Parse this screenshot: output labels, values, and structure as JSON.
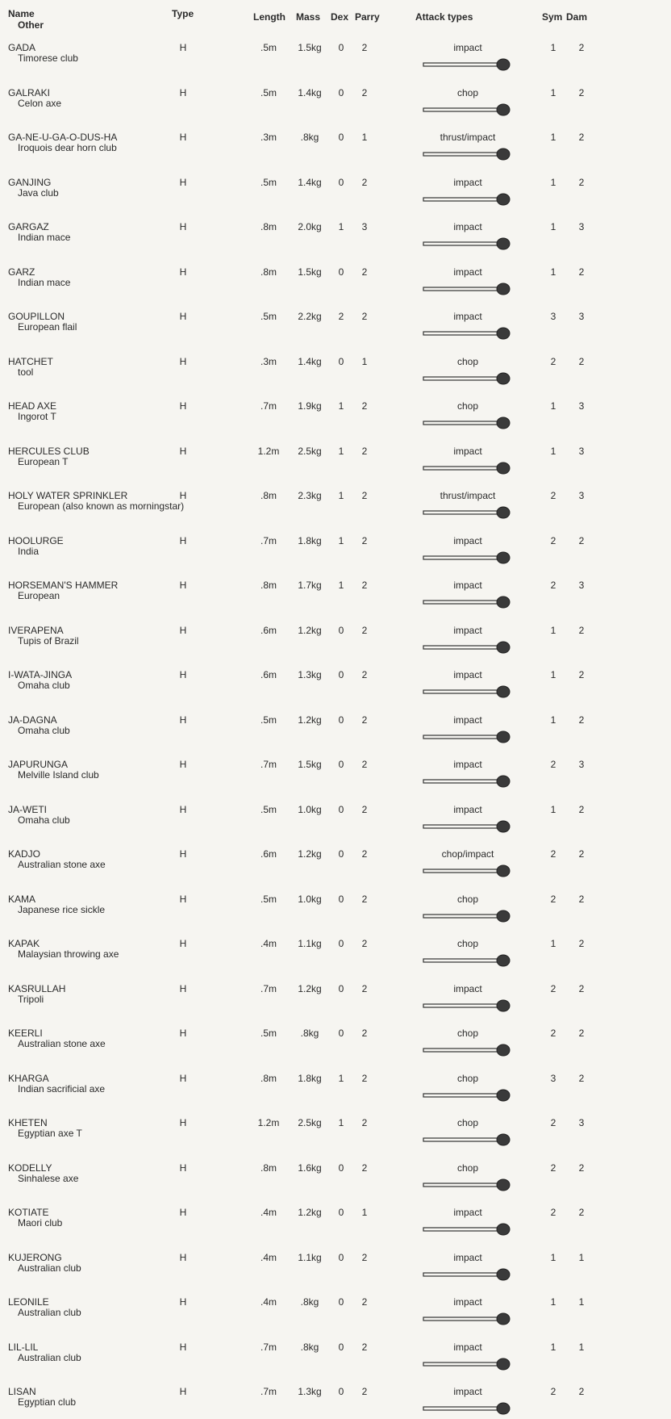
{
  "table": {
    "header": [
      "Name",
      "Other",
      "Type",
      "Length",
      "Mass",
      "Dex",
      "Parry",
      "Attack types",
      "Sym",
      "Dam"
    ],
    "rows": [
      [
        "GADA",
        "Timorese club",
        "H",
        ".5m",
        "1.5kg",
        0,
        2,
        "impact",
        1,
        2
      ],
      [
        "GALRAKI",
        "Celon axe",
        "H",
        ".5m",
        "1.4kg",
        0,
        2,
        "chop",
        1,
        2
      ],
      [
        "GA-NE-U-GA-O-DUS-HA",
        "Iroquois dear horn club",
        "H",
        ".3m",
        ".8kg",
        0,
        1,
        "thrust/impact",
        1,
        2
      ],
      [
        "GANJING",
        "Java club",
        "H",
        ".5m",
        "1.4kg",
        0,
        2,
        "impact",
        1,
        2
      ],
      [
        "GARGAZ",
        "Indian mace",
        "H",
        ".8m",
        "2.0kg",
        1,
        3,
        "impact",
        1,
        3
      ],
      [
        "GARZ",
        "Indian mace",
        "H",
        ".8m",
        "1.5kg",
        0,
        2,
        "impact",
        1,
        2
      ],
      [
        "GOUPILLON",
        "European flail",
        "H",
        ".5m",
        "2.2kg",
        2,
        2,
        "impact",
        3,
        3
      ],
      [
        "HATCHET",
        "tool",
        "H",
        ".3m",
        "1.4kg",
        0,
        1,
        "chop",
        2,
        2
      ],
      [
        "HEAD AXE",
        "Ingorot   T",
        "H",
        ".7m",
        "1.9kg",
        1,
        2,
        "chop",
        1,
        3
      ],
      [
        "HERCULES CLUB",
        "European   T",
        "H",
        "1.2m",
        "2.5kg",
        1,
        2,
        "impact",
        1,
        3
      ],
      [
        "HOLY WATER SPRINKLER",
        "European (also known as morningstar)",
        "H",
        ".8m",
        "2.3kg",
        1,
        2,
        "thrust/impact",
        2,
        3
      ],
      [
        "HOOLURGE",
        "India",
        "H",
        ".7m",
        "1.8kg",
        1,
        2,
        "impact",
        2,
        2
      ],
      [
        "HORSEMAN'S HAMMER",
        "European",
        "H",
        ".8m",
        "1.7kg",
        1,
        2,
        "impact",
        2,
        3
      ],
      [
        "IVERAPENA",
        "Tupis of Brazil",
        "H",
        ".6m",
        "1.2kg",
        0,
        2,
        "impact",
        1,
        2
      ],
      [
        "I-WATA-JINGA",
        "Omaha club",
        "H",
        ".6m",
        "1.3kg",
        0,
        2,
        "impact",
        1,
        2
      ],
      [
        "JA-DAGNA",
        "Omaha club",
        "H",
        ".5m",
        "1.2kg",
        0,
        2,
        "impact",
        1,
        2
      ],
      [
        "JAPURUNGA",
        "Melville Island club",
        "H",
        ".7m",
        "1.5kg",
        0,
        2,
        "impact",
        2,
        3
      ],
      [
        "JA-WETI",
        "Omaha club",
        "H",
        ".5m",
        "1.0kg",
        0,
        2,
        "impact",
        1,
        2
      ],
      [
        "KADJO",
        "Australian stone axe",
        "H",
        ".6m",
        "1.2kg",
        0,
        2,
        "chop/impact",
        2,
        2
      ],
      [
        "KAMA",
        "Japanese rice sickle",
        "H",
        ".5m",
        "1.0kg",
        0,
        2,
        "chop",
        2,
        2
      ],
      [
        "KAPAK",
        "Malaysian throwing axe",
        "H",
        ".4m",
        "1.1kg",
        0,
        2,
        "chop",
        1,
        2
      ],
      [
        "KASRULLAH",
        "Tripoli",
        "H",
        ".7m",
        "1.2kg",
        0,
        2,
        "impact",
        2,
        2
      ],
      [
        "KEERLI",
        "Australian stone axe",
        "H",
        ".5m",
        ".8kg",
        0,
        2,
        "chop",
        2,
        2
      ],
      [
        "KHARGA",
        "Indian sacrificial axe",
        "H",
        ".8m",
        "1.8kg",
        1,
        2,
        "chop",
        3,
        2
      ],
      [
        "KHETEN",
        "Egyptian axe   T",
        "H",
        "1.2m",
        "2.5kg",
        1,
        2,
        "chop",
        2,
        3
      ],
      [
        "KODELLY",
        "Sinhalese axe",
        "H",
        ".8m",
        "1.6kg",
        0,
        2,
        "chop",
        2,
        2
      ],
      [
        "KOTIATE",
        "Maori club",
        "H",
        ".4m",
        "1.2kg",
        0,
        1,
        "impact",
        2,
        2
      ],
      [
        "KUJERONG",
        "Australian club",
        "H",
        ".4m",
        "1.1kg",
        0,
        2,
        "impact",
        1,
        1
      ],
      [
        "LEONILE",
        "Australian club",
        "H",
        ".4m",
        ".8kg",
        0,
        2,
        "impact",
        1,
        1
      ],
      [
        "LIL-LIL",
        "Australian club",
        "H",
        ".7m",
        ".8kg",
        0,
        2,
        "impact",
        1,
        1
      ],
      [
        "LISAN",
        "Egyptian club",
        "H",
        ".7m",
        "1.3kg",
        0,
        2,
        "impact",
        2,
        2
      ]
    ]
  }
}
